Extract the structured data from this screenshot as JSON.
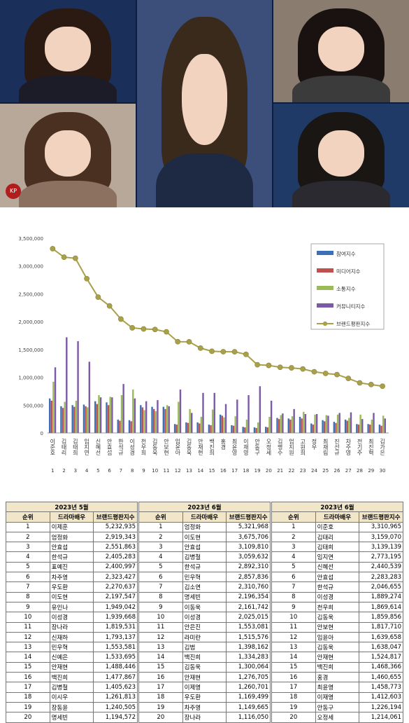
{
  "colors": {
    "participation": "#3c6fb5",
    "media": "#c0504d",
    "communication": "#9bbb59",
    "community": "#7d5aa6",
    "brand_index_line": "#a8a04a",
    "table_header_bg": "#f2e6c9"
  },
  "chart_data": {
    "type": "bar",
    "title": "",
    "xlabel": "",
    "ylabel": "",
    "ylim": [
      0,
      3500000
    ],
    "yticks": [
      "0",
      "500,000",
      "1,000,000",
      "1,500,000",
      "2,000,000",
      "2,500,000",
      "3,000,000",
      "3,500,000"
    ],
    "grid": false,
    "legend_position": "right",
    "categories": [
      "이준호",
      "김태리",
      "김태희",
      "임지연",
      "신혜선",
      "안효섭",
      "한석규",
      "이성경",
      "천우희",
      "김동욱",
      "안보현",
      "임윤아",
      "김동욱",
      "안재현",
      "백진희",
      "홍경",
      "최윤영",
      "이재영",
      "안동구",
      "오정세",
      "김명수",
      "엄지원",
      "고원희",
      "정우",
      "최재림",
      "진선규",
      "차주영",
      "전기주",
      "최진혁",
      "김가은"
    ],
    "ranks": [
      "1",
      "2",
      "3",
      "4",
      "5",
      "6",
      "7",
      "8",
      "9",
      "10",
      "11",
      "12",
      "13",
      "14",
      "15",
      "16",
      "17",
      "18",
      "19",
      "20",
      "21",
      "22",
      "23",
      "24",
      "25",
      "26",
      "27",
      "28",
      "29",
      "30"
    ],
    "series": [
      {
        "name": "참여지수",
        "values": [
          620000,
          480000,
          500000,
          510000,
          570000,
          550000,
          240000,
          230000,
          500000,
          470000,
          470000,
          160000,
          190000,
          190000,
          150000,
          330000,
          140000,
          110000,
          100000,
          110000,
          270000,
          260000,
          290000,
          170000,
          230000,
          200000,
          240000,
          160000,
          160000,
          150000
        ]
      },
      {
        "name": "미디어지수",
        "values": [
          580000,
          450000,
          470000,
          480000,
          520000,
          500000,
          220000,
          210000,
          460000,
          430000,
          430000,
          150000,
          180000,
          170000,
          140000,
          310000,
          130000,
          100000,
          90000,
          100000,
          250000,
          240000,
          260000,
          150000,
          210000,
          180000,
          220000,
          150000,
          150000,
          130000
        ]
      },
      {
        "name": "소통지수",
        "values": [
          920000,
          560000,
          580000,
          460000,
          680000,
          650000,
          680000,
          780000,
          410000,
          390000,
          500000,
          560000,
          430000,
          290000,
          420000,
          280000,
          300000,
          240000,
          190000,
          290000,
          320000,
          300000,
          380000,
          330000,
          320000,
          330000,
          270000,
          330000,
          240000,
          310000
        ]
      },
      {
        "name": "커뮤니티지수",
        "values": [
          1180000,
          1720000,
          1650000,
          1280000,
          640000,
          640000,
          880000,
          620000,
          570000,
          590000,
          480000,
          780000,
          360000,
          720000,
          720000,
          520000,
          600000,
          680000,
          840000,
          580000,
          350000,
          430000,
          340000,
          340000,
          310000,
          360000,
          370000,
          250000,
          360000,
          260000
        ]
      },
      {
        "name": "브랜드평판지수",
        "values": [
          3310965,
          3159070,
          3139139,
          2773195,
          2440539,
          2283283,
          2046655,
          1889274,
          1869614,
          1859856,
          1817710,
          1639658,
          1638047,
          1524817,
          1468366,
          1460655,
          1458773,
          1412603,
          1226194,
          1214061,
          1180000,
          1170000,
          1150000,
          1100000,
          1070000,
          1050000,
          980000,
          900000,
          870000,
          840000
        ]
      }
    ]
  },
  "tables": [
    {
      "month": "2023년 5월",
      "headers": [
        "순위",
        "드라마배우",
        "브랜드평판지수"
      ],
      "rows": [
        [
          "1",
          "이제훈",
          "5,232,935"
        ],
        [
          "2",
          "엄정화",
          "2,919,343"
        ],
        [
          "3",
          "안효섭",
          "2,551,863"
        ],
        [
          "4",
          "한석규",
          "2,405,283"
        ],
        [
          "5",
          "표예진",
          "2,400,997"
        ],
        [
          "6",
          "차주영",
          "2,323,427"
        ],
        [
          "7",
          "우도환",
          "2,270,637"
        ],
        [
          "8",
          "이도현",
          "2,197,547"
        ],
        [
          "9",
          "유인나",
          "1,949,042"
        ],
        [
          "10",
          "이성경",
          "1,939,668"
        ],
        [
          "11",
          "장나라",
          "1,819,531"
        ],
        [
          "12",
          "신재하",
          "1,793,137"
        ],
        [
          "13",
          "민우혁",
          "1,553,581"
        ],
        [
          "14",
          "신예은",
          "1,533,695"
        ],
        [
          "15",
          "안재현",
          "1,488,446"
        ],
        [
          "16",
          "백진희",
          "1,477,867"
        ],
        [
          "17",
          "김병철",
          "1,405,623"
        ],
        [
          "18",
          "이시우",
          "1,261,813"
        ],
        [
          "19",
          "장동윤",
          "1,240,505"
        ],
        [
          "20",
          "명세빈",
          "1,194,572"
        ]
      ]
    },
    {
      "month": "2023년 6월",
      "headers": [
        "순위",
        "드라마배우",
        "브랜드평판지수"
      ],
      "rows": [
        [
          "1",
          "엄정화",
          "5,321,968"
        ],
        [
          "2",
          "이도현",
          "3,675,706"
        ],
        [
          "3",
          "안효섭",
          "3,109,810"
        ],
        [
          "4",
          "김병철",
          "3,059,632"
        ],
        [
          "5",
          "한석규",
          "2,892,310"
        ],
        [
          "6",
          "민우혁",
          "2,857,836"
        ],
        [
          "7",
          "김소연",
          "2,310,760"
        ],
        [
          "8",
          "명세빈",
          "2,196,354"
        ],
        [
          "9",
          "이동욱",
          "2,161,742"
        ],
        [
          "10",
          "이성경",
          "2,025,015"
        ],
        [
          "11",
          "안은진",
          "1,553,081"
        ],
        [
          "12",
          "라미란",
          "1,515,576"
        ],
        [
          "13",
          "김범",
          "1,398,162"
        ],
        [
          "14",
          "백진희",
          "1,334,283"
        ],
        [
          "15",
          "김동욱",
          "1,300,064"
        ],
        [
          "16",
          "안재현",
          "1,276,705"
        ],
        [
          "17",
          "이제영",
          "1,260,701"
        ],
        [
          "18",
          "우도환",
          "1,169,499"
        ],
        [
          "19",
          "차주영",
          "1,149,665"
        ],
        [
          "20",
          "장나라",
          "1,116,050"
        ]
      ]
    },
    {
      "month": "2023년 6월",
      "headers": [
        "순위",
        "드라마배우",
        "브랜드평판지수"
      ],
      "rows": [
        [
          "1",
          "이준호",
          "3,310,965"
        ],
        [
          "2",
          "김태리",
          "3,159,070"
        ],
        [
          "3",
          "김태희",
          "3,139,139"
        ],
        [
          "4",
          "임지연",
          "2,773,195"
        ],
        [
          "5",
          "신혜선",
          "2,440,539"
        ],
        [
          "6",
          "안효섭",
          "2,283,283"
        ],
        [
          "7",
          "한석규",
          "2,046,655"
        ],
        [
          "8",
          "이성경",
          "1,889,274"
        ],
        [
          "9",
          "천우희",
          "1,869,614"
        ],
        [
          "10",
          "김동욱",
          "1,859,856"
        ],
        [
          "11",
          "안보현",
          "1,817,710"
        ],
        [
          "12",
          "임윤아",
          "1,639,658"
        ],
        [
          "13",
          "김동욱",
          "1,638,047"
        ],
        [
          "14",
          "안재현",
          "1,524,817"
        ],
        [
          "15",
          "백진희",
          "1,468,366"
        ],
        [
          "16",
          "홍경",
          "1,460,655"
        ],
        [
          "17",
          "최윤영",
          "1,458,773"
        ],
        [
          "18",
          "이재영",
          "1,412,603"
        ],
        [
          "19",
          "안동구",
          "1,226,194"
        ],
        [
          "20",
          "오정세",
          "1,214,061"
        ]
      ]
    }
  ],
  "photos": [
    {
      "name": "photo-actress-top-left",
      "bg": "#1a2f5a",
      "hair": "#2a1a12",
      "body": "#1c1c28"
    },
    {
      "name": "photo-actor-center",
      "bg": "#3b4f7a",
      "hair": "#3a2a1c",
      "body": "#1e2a44"
    },
    {
      "name": "photo-actress-top-right",
      "bg": "#8a7c6f",
      "hair": "#1a1210",
      "body": "#3b3b3b"
    },
    {
      "name": "photo-actress-bottom-left",
      "bg": "#b8a89a",
      "hair": "#4a3020",
      "body": "#8c7060"
    },
    {
      "name": "photo-actress-bottom-right",
      "bg": "#1f3a66",
      "hair": "#1a1614",
      "body": "#2a2a30"
    }
  ],
  "logo_icon": "watermark-logo-icon"
}
